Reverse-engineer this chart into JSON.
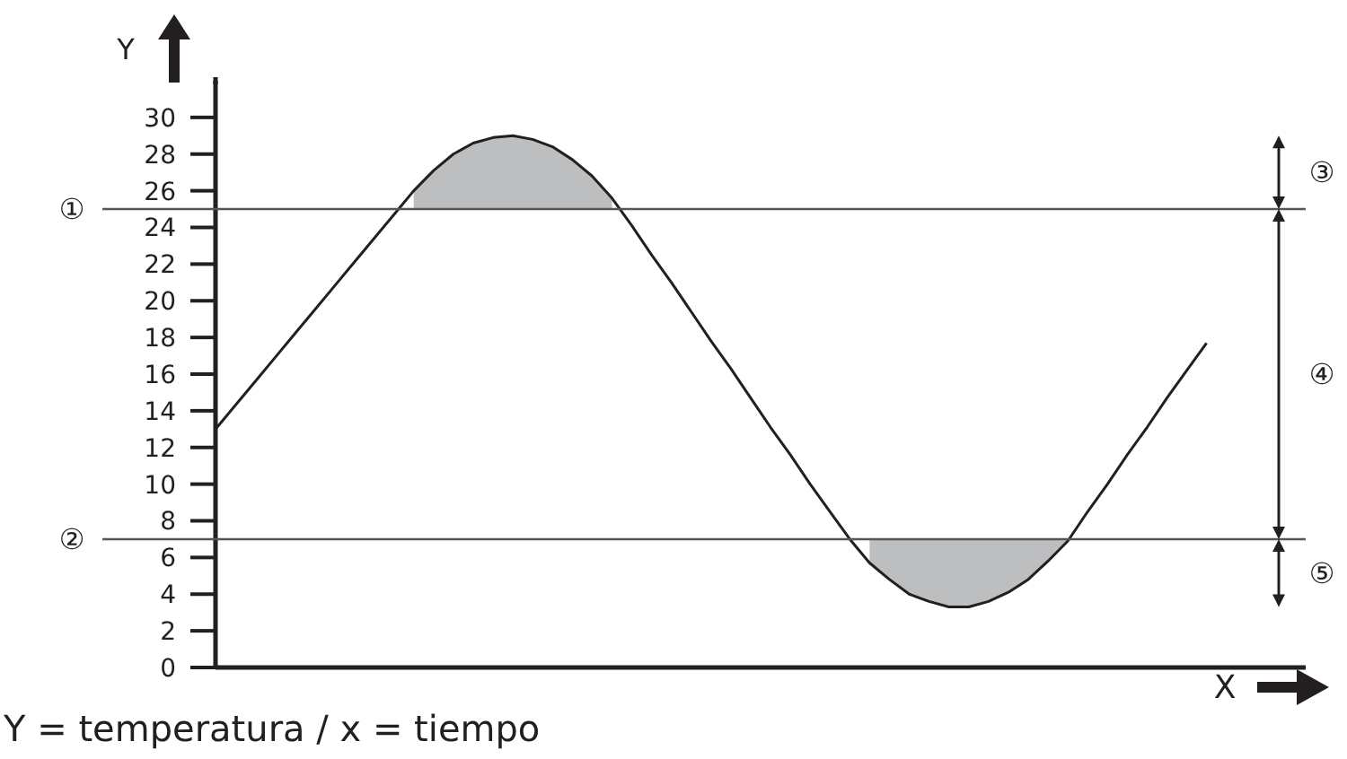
{
  "chart_data": {
    "type": "line",
    "xlabel": "X",
    "ylabel": "Y",
    "categories": [
      null,
      null,
      null,
      null,
      null,
      null,
      null,
      null,
      null,
      null,
      null,
      null,
      null,
      null,
      null,
      null,
      null,
      null,
      null,
      null,
      null,
      null,
      null,
      null,
      null,
      null,
      null,
      null,
      null,
      null,
      null,
      null,
      null,
      null,
      null,
      null,
      null,
      null,
      null,
      null,
      null,
      null,
      null,
      null,
      null,
      null,
      null,
      null,
      null,
      null,
      null,
      null,
      null,
      null,
      null,
      null
    ],
    "series": [
      {
        "color": "#231f20",
        "values": [
          13,
          14.3,
          15.6,
          16.9,
          18.2,
          19.5,
          20.8,
          22.1,
          23.4,
          24.7,
          26.0,
          27.1,
          28.0,
          28.6,
          28.9,
          29.0,
          28.8,
          28.4,
          27.7,
          26.8,
          25.6,
          24.1,
          22.5,
          21.0,
          19.4,
          17.8,
          16.3,
          14.7,
          13.1,
          11.6,
          10.0,
          8.5,
          7.0,
          5.7,
          4.8,
          4.0,
          3.6,
          3.3,
          3.3,
          3.6,
          4.1,
          4.8,
          5.8,
          6.9,
          8.5,
          10.0,
          11.6,
          13.1,
          14.7,
          16.2,
          17.7,
          null,
          null,
          null,
          null,
          null
        ]
      },
      {
        "type": "area",
        "color": "#bcbec0",
        "values": [
          null,
          null,
          null,
          null,
          null,
          null,
          null,
          null,
          null,
          null,
          26.0,
          27.1,
          28.0,
          28.6,
          28.9,
          29.0,
          28.8,
          28.4,
          27.7,
          26.8,
          25.6,
          null,
          null,
          null,
          null,
          null,
          null,
          null,
          null,
          null,
          null,
          null,
          null,
          null,
          null,
          null,
          null,
          null,
          null,
          null,
          null,
          null,
          null,
          null,
          null,
          null,
          null,
          null,
          null,
          null,
          null,
          null,
          null,
          null,
          null,
          null
        ]
      },
      {
        "type": "area",
        "color": "#bcbec0",
        "values": [
          null,
          null,
          null,
          null,
          null,
          null,
          null,
          null,
          null,
          null,
          null,
          null,
          null,
          null,
          null,
          null,
          null,
          null,
          null,
          null,
          null,
          null,
          null,
          null,
          null,
          null,
          null,
          null,
          null,
          null,
          null,
          null,
          null,
          7,
          7,
          7,
          7,
          7,
          7,
          7,
          7,
          7,
          7,
          7,
          null,
          null,
          null,
          null,
          null,
          null,
          null,
          null,
          null,
          null,
          null,
          null
        ]
      }
    ],
    "ylim": [
      0,
      32
    ],
    "yticks": [
      0,
      2,
      4,
      6,
      8,
      10,
      12,
      14,
      16,
      18,
      20,
      22,
      24,
      26,
      28,
      30
    ],
    "ref_lines": [
      {
        "axis": "y",
        "value": 25,
        "label": "①"
      },
      {
        "axis": "y",
        "value": 7,
        "label": "②"
      }
    ],
    "annotations": [
      "③",
      "④",
      "⑤",
      "Y = temperatura / x = tiempo"
    ]
  }
}
